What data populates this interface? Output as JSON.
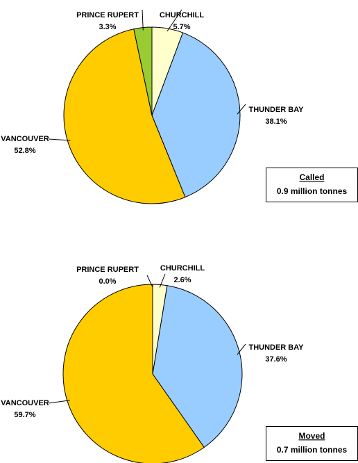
{
  "chart_data": [
    {
      "type": "pie",
      "categories": [
        "CHURCHILL",
        "THUNDER BAY",
        "VANCOUVER",
        "PRINCE RUPERT"
      ],
      "values": [
        5.7,
        38.1,
        52.8,
        3.3
      ],
      "value_labels": [
        "5.7%",
        "38.1%",
        "52.8%",
        "3.3%"
      ],
      "colors": [
        "#ffffcc",
        "#99ccff",
        "#ffcc00",
        "#99cc33"
      ],
      "annotation": {
        "title": "Called",
        "text": "0.9 million tonnes"
      }
    },
    {
      "type": "pie",
      "categories": [
        "CHURCHILL",
        "THUNDER BAY",
        "VANCOUVER",
        "PRINCE RUPERT"
      ],
      "values": [
        2.6,
        37.6,
        59.7,
        0.0
      ],
      "value_labels": [
        "2.6%",
        "37.6%",
        "59.7%",
        "0.0%"
      ],
      "colors": [
        "#ffffcc",
        "#99ccff",
        "#ffcc00",
        "#99cc33"
      ],
      "annotation": {
        "title": "Moved",
        "text": "0.7 million tonnes"
      }
    }
  ]
}
